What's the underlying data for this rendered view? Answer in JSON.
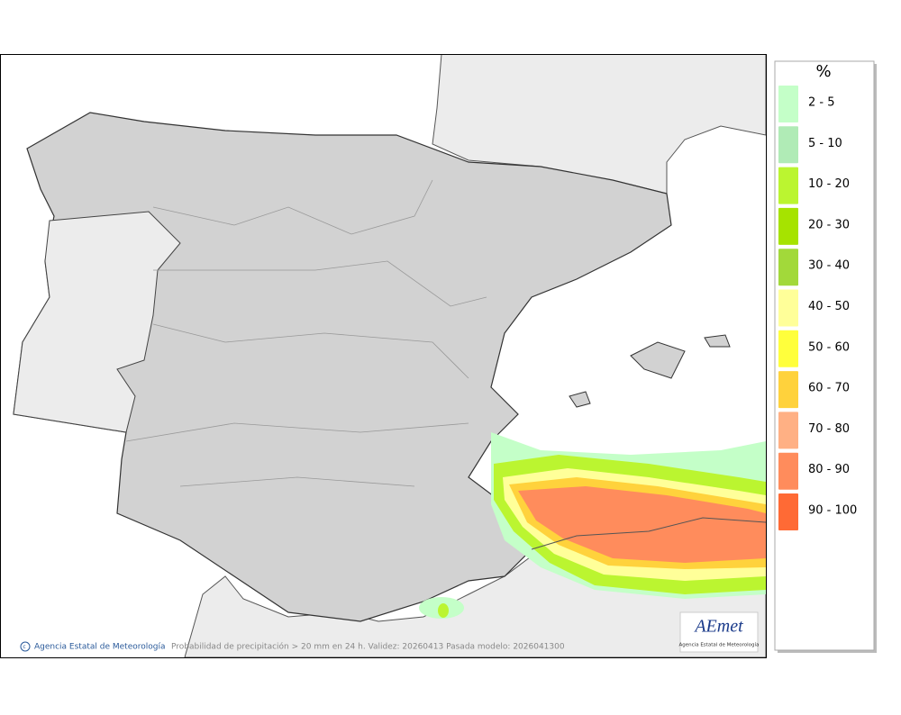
{
  "legend": {
    "title": "%",
    "items": [
      {
        "label": "2 - 5",
        "color": "#c4ffc8"
      },
      {
        "label": "5 - 10",
        "color": "#b0ebb6"
      },
      {
        "label": "10 - 20",
        "color": "#bbf530"
      },
      {
        "label": "20 - 30",
        "color": "#a6e300"
      },
      {
        "label": "30 - 40",
        "color": "#a2d93a"
      },
      {
        "label": "40 - 50",
        "color": "#ffff99"
      },
      {
        "label": "50 - 60",
        "color": "#ffff3c"
      },
      {
        "label": "60 - 70",
        "color": "#ffd23c"
      },
      {
        "label": "70 - 80",
        "color": "#ffb084"
      },
      {
        "label": "80 - 90",
        "color": "#ff8c5c"
      },
      {
        "label": "90 - 100",
        "color": "#ff6a35"
      }
    ]
  },
  "footer": {
    "credit": "Agencia Estatal de Meteorología",
    "caption": "Probabilidad de precipitación > 20 mm en 24 h. Validez: 20260413 Pasada modelo: 2026041300"
  },
  "logo": {
    "name": "AEmet",
    "subtitle": "Agencia Estatal de Meteorología"
  }
}
